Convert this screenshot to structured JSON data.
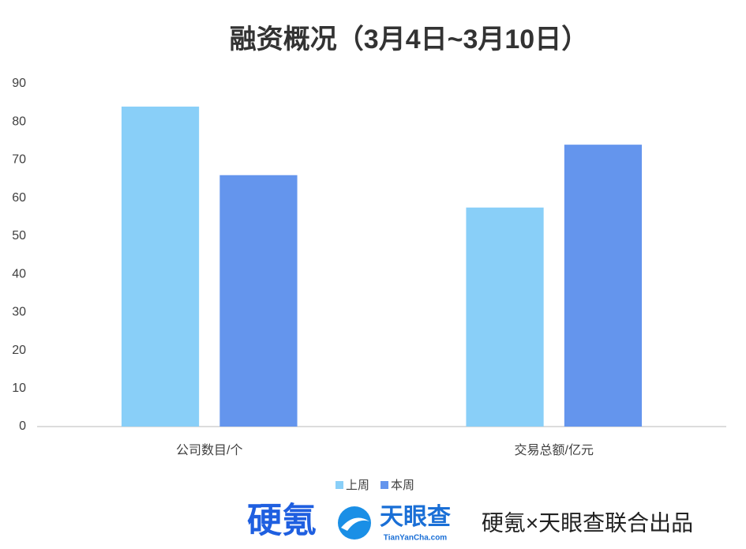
{
  "chart_data": {
    "type": "bar",
    "title": "融资概况（3月4日~3月10日）",
    "categories": [
      "公司数目/个",
      "交易总额/亿元"
    ],
    "series": [
      {
        "name": "上周",
        "color": "#89cff8",
        "values": [
          84,
          57.5
        ]
      },
      {
        "name": "本周",
        "color": "#6495ed",
        "values": [
          66,
          74
        ]
      }
    ],
    "ylim": [
      0,
      90
    ],
    "yticks": [
      0,
      10,
      20,
      30,
      40,
      50,
      60,
      70,
      80,
      90
    ],
    "grid": false,
    "legend": "bottom"
  },
  "footer": {
    "brand1": "硬氪",
    "brand2": "天眼查",
    "brand2_url": "TianYanCha.com",
    "credit": "硬氪×天眼查联合出品"
  }
}
